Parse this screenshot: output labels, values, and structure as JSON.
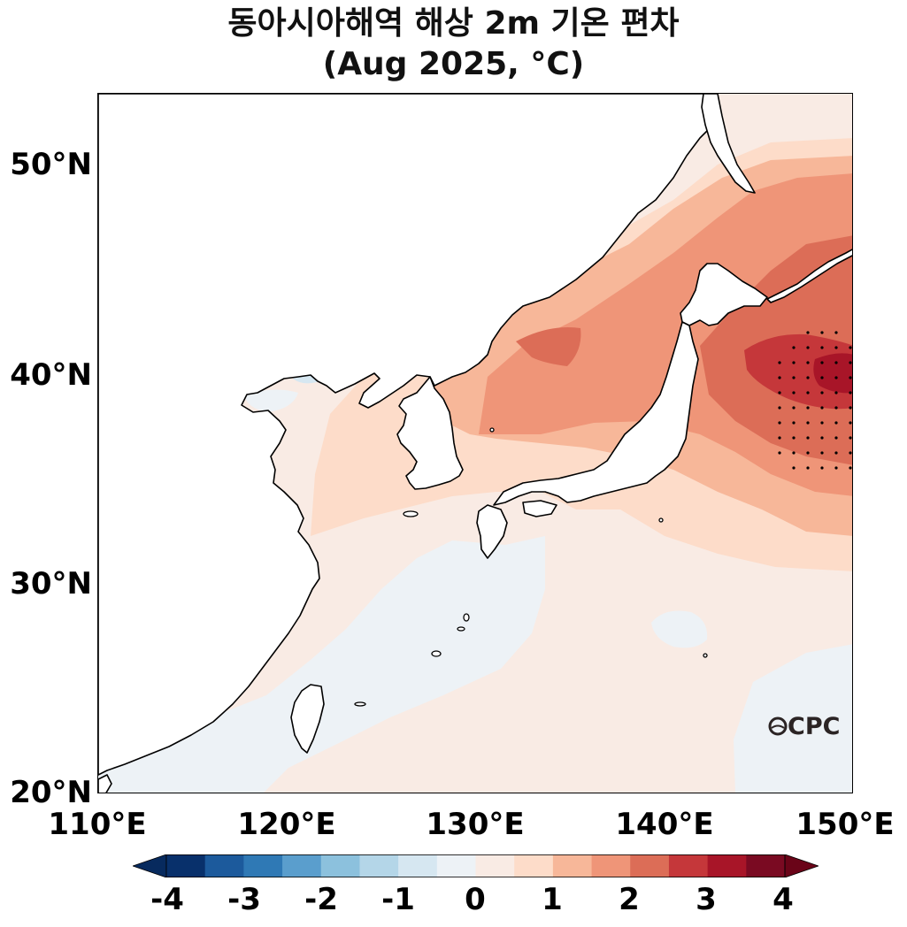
{
  "title": {
    "line1": "동아시아해역 해상 2m 기온 편차",
    "line2": "(Aug 2025, °C)"
  },
  "map": {
    "extent_lon": [
      110,
      150
    ],
    "extent_lat": [
      20,
      53.5
    ],
    "lat_ticks": [
      {
        "value": 50,
        "label": "50°N"
      },
      {
        "value": 40,
        "label": "40°N"
      },
      {
        "value": 30,
        "label": "30°N"
      },
      {
        "value": 20,
        "label": "20°N"
      }
    ],
    "lon_ticks": [
      {
        "value": 110,
        "label": "110°E"
      },
      {
        "value": 120,
        "label": "120°E"
      },
      {
        "value": 130,
        "label": "130°E"
      },
      {
        "value": 140,
        "label": "140°E"
      },
      {
        "value": 150,
        "label": "150°E"
      }
    ],
    "stippling": "significance dots over region near 145-150°E, 35-42°N",
    "land_color": "#ffffff",
    "coastline_color": "#000000"
  },
  "colorbar": {
    "levels": [
      -4,
      -3.5,
      -3,
      -2.5,
      -2,
      -1.5,
      -1,
      -0.5,
      0,
      0.5,
      1,
      1.5,
      2,
      2.5,
      3,
      3.5,
      4
    ],
    "colors": [
      "#08306b",
      "#1c5a9c",
      "#2f79b5",
      "#5a9ecd",
      "#8cc1dd",
      "#b4d6e8",
      "#d6e7f1",
      "#edf2f6",
      "#f9ebe4",
      "#fddcc9",
      "#f7b799",
      "#ef9578",
      "#dc6d57",
      "#c5373a",
      "#a81528",
      "#7a0a22"
    ],
    "extend_low_color": "#072a5e",
    "extend_high_color": "#6a0418",
    "tick_labels": [
      "-4",
      "-3",
      "-2",
      "-1",
      "0",
      "1",
      "2",
      "3",
      "4"
    ],
    "unit_label": "°C"
  },
  "logo": {
    "text": "CPC",
    "mark": "O-circle"
  }
}
